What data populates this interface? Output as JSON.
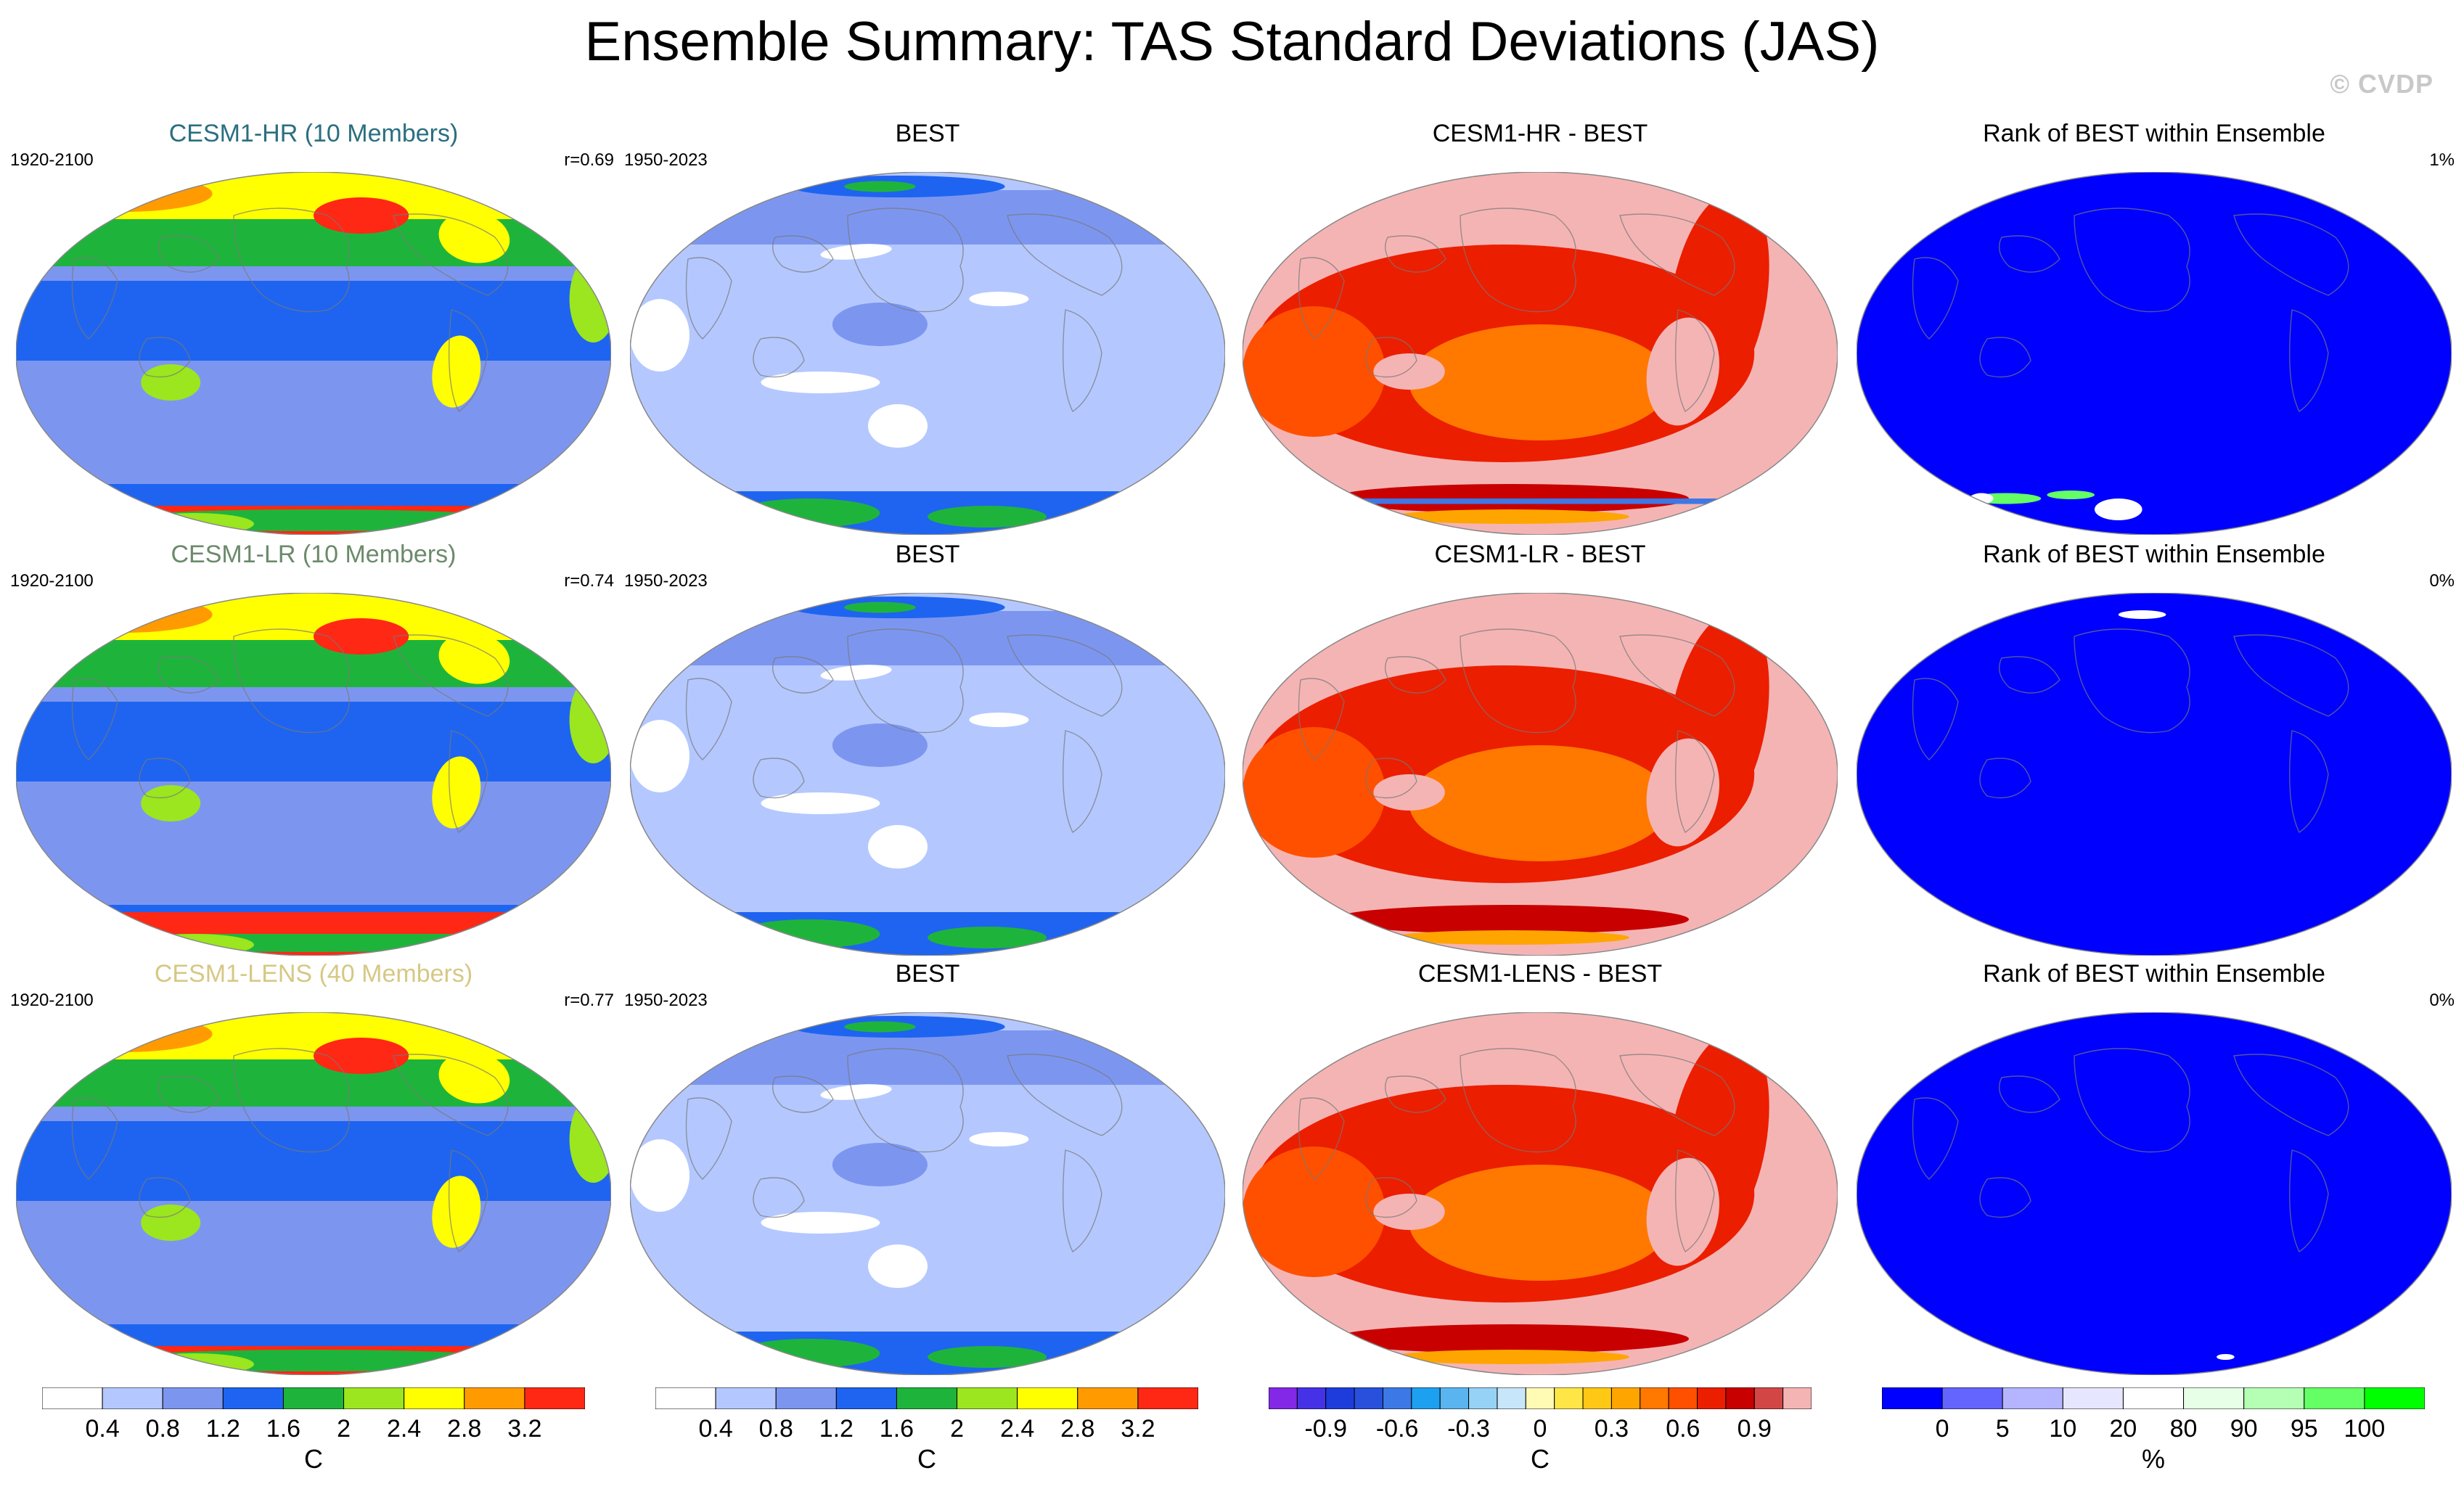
{
  "title": "Ensemble Summary: TAS Standard Deviations (JAS)",
  "credit": "© CVDP",
  "rows": [
    {
      "model": "CESM1-HR (10 Members)",
      "model_color": "#2a6f80",
      "model_period": "1920-2100",
      "pattern_corr": "r=0.69",
      "obs_title": "BEST",
      "obs_period": "1950-2023",
      "diff_title": "CESM1-HR - BEST",
      "rank_title": "Rank of BEST within Ensemble",
      "rank_pct": "1%"
    },
    {
      "model": "CESM1-LR (10 Members)",
      "model_color": "#6b8a6b",
      "model_period": "1920-2100",
      "pattern_corr": "r=0.74",
      "obs_title": "BEST",
      "obs_period": "1950-2023",
      "diff_title": "CESM1-LR - BEST",
      "rank_title": "Rank of BEST within Ensemble",
      "rank_pct": "0%"
    },
    {
      "model": "CESM1-LENS (40 Members)",
      "model_color": "#d6c884",
      "model_period": "1920-2100",
      "pattern_corr": "r=0.77",
      "obs_title": "BEST",
      "obs_period": "1950-2023",
      "diff_title": "CESM1-LENS - BEST",
      "rank_title": "Rank of BEST within Ensemble",
      "rank_pct": "0%"
    }
  ],
  "chart_data": [
    {
      "type": "heatmap",
      "name": "ensemble-mean-std-colorbar",
      "unit": "C",
      "levels": [
        "0.4",
        "0.8",
        "1.2",
        "1.6",
        "2",
        "2.4",
        "2.8",
        "3.2"
      ],
      "colors": [
        "#ffffff",
        "#b4c8ff",
        "#7c96f0",
        "#1e64f0",
        "#1eb43c",
        "#9be61e",
        "#ffff00",
        "#ff9b00",
        "#ff2814"
      ]
    },
    {
      "type": "heatmap",
      "name": "observed-std-colorbar",
      "unit": "C",
      "levels": [
        "0.4",
        "0.8",
        "1.2",
        "1.6",
        "2",
        "2.4",
        "2.8",
        "3.2"
      ],
      "colors": [
        "#ffffff",
        "#b4c8ff",
        "#7c96f0",
        "#1e64f0",
        "#1eb43c",
        "#9be61e",
        "#ffff00",
        "#ff9b00",
        "#ff2814"
      ]
    },
    {
      "type": "heatmap",
      "name": "difference-colorbar",
      "unit": "C",
      "levels": [
        "-0.9",
        "-0.6",
        "-0.3",
        "0",
        "0.3",
        "0.6",
        "0.9"
      ],
      "colors": [
        "#8228e6",
        "#4632e6",
        "#1e3cdc",
        "#2850dc",
        "#3c78e6",
        "#1ea0f0",
        "#5ab4f0",
        "#96d2f5",
        "#c8e6fa",
        "#fffab4",
        "#ffe646",
        "#ffc814",
        "#ffa500",
        "#ff7800",
        "#ff5000",
        "#eb1e00",
        "#c80000",
        "#d24646",
        "#f5b4b4"
      ]
    },
    {
      "type": "heatmap",
      "name": "rank-colorbar",
      "unit": "%",
      "levels": [
        "0",
        "5",
        "10",
        "20",
        "80",
        "90",
        "95",
        "100"
      ],
      "colors": [
        "#0000ff",
        "#6464ff",
        "#b4b4ff",
        "#e6e6ff",
        "#ffffff",
        "#e6ffe6",
        "#b4ffb4",
        "#64ff64",
        "#00ff00"
      ]
    }
  ]
}
